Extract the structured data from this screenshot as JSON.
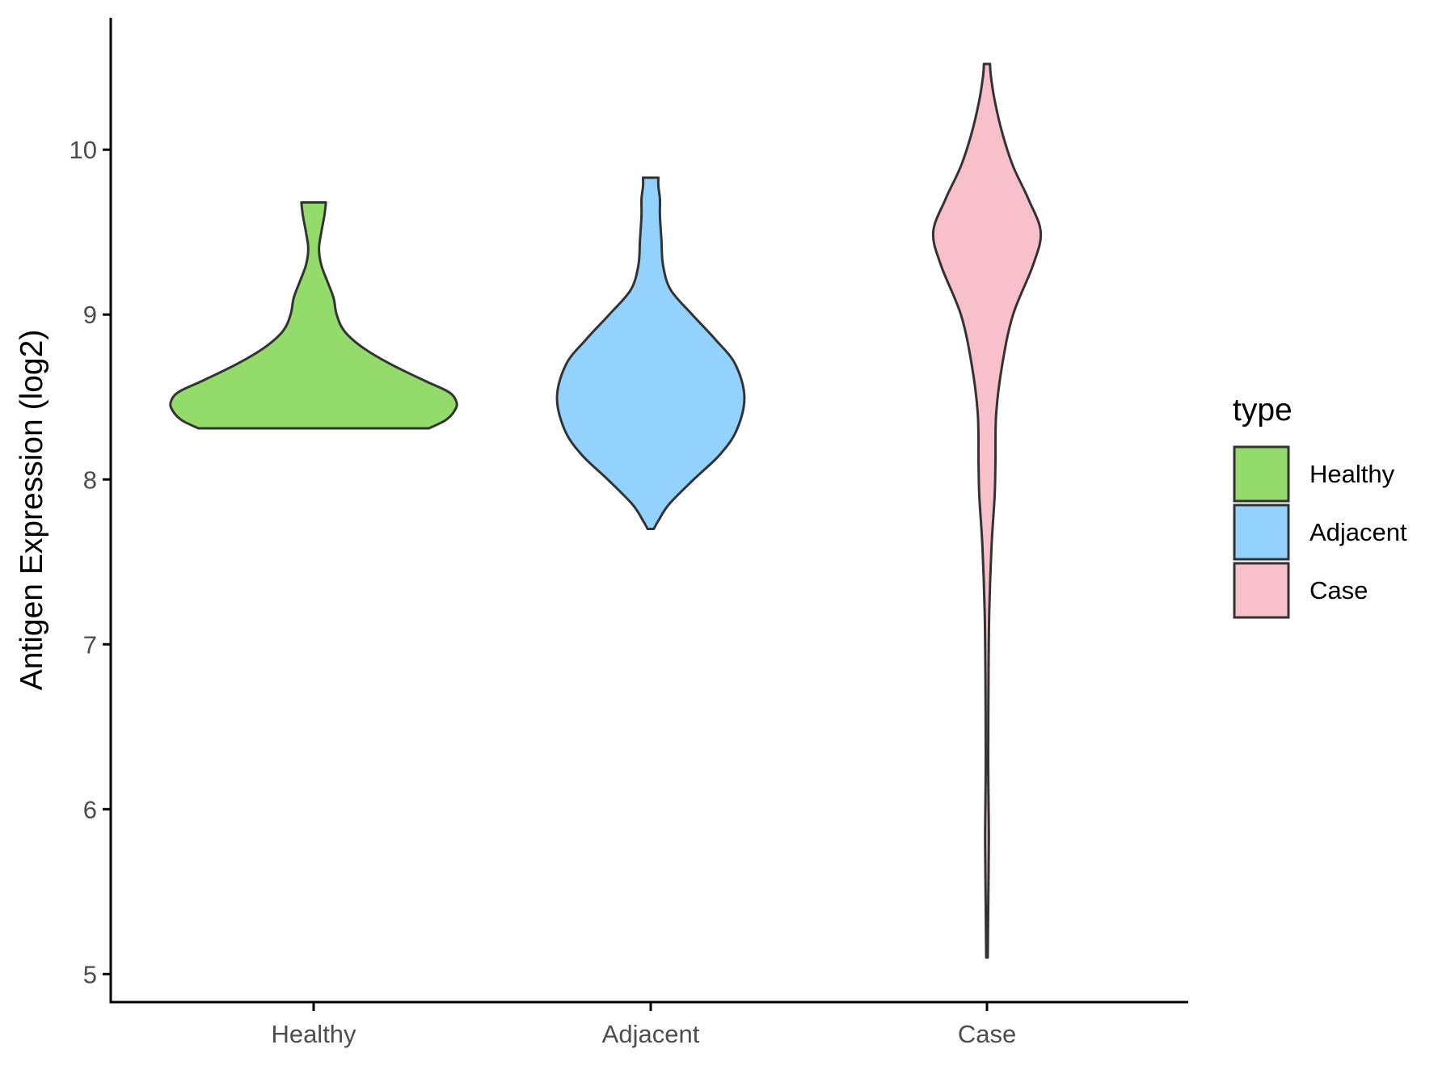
{
  "chart_data": {
    "type": "violin",
    "title": "",
    "xlabel": "",
    "ylabel": "Antigen Expression (log2)",
    "ylim": [
      4.83,
      10.8
    ],
    "yticks": [
      5,
      6,
      7,
      8,
      9,
      10
    ],
    "ytick_labels": [
      "5",
      "6",
      "7",
      "8",
      "9",
      "10"
    ],
    "categories": [
      "Healthy",
      "Adjacent",
      "Case"
    ],
    "grid": false,
    "legend": {
      "title": "type",
      "position": "right",
      "entries": [
        "Healthy",
        "Adjacent",
        "Case"
      ]
    },
    "colors": {
      "Healthy": "#93dc6b",
      "Adjacent": "#93d2fc",
      "Case": "#f7c0cb",
      "outline": "#333333"
    },
    "series": [
      {
        "name": "Healthy",
        "min": 8.31,
        "max": 9.68,
        "density": [
          [
            8.31,
            0.75
          ],
          [
            8.36,
            0.86
          ],
          [
            8.42,
            0.92
          ],
          [
            8.47,
            0.93
          ],
          [
            8.53,
            0.88
          ],
          [
            8.6,
            0.72
          ],
          [
            8.7,
            0.5
          ],
          [
            8.8,
            0.32
          ],
          [
            8.9,
            0.2
          ],
          [
            9.0,
            0.15
          ],
          [
            9.1,
            0.13
          ],
          [
            9.2,
            0.09
          ],
          [
            9.3,
            0.05
          ],
          [
            9.4,
            0.035
          ],
          [
            9.5,
            0.05
          ],
          [
            9.6,
            0.07
          ],
          [
            9.68,
            0.08
          ]
        ]
      },
      {
        "name": "Adjacent",
        "min": 7.7,
        "max": 9.83,
        "density": [
          [
            7.7,
            0.02
          ],
          [
            7.75,
            0.05
          ],
          [
            7.85,
            0.12
          ],
          [
            8.0,
            0.28
          ],
          [
            8.15,
            0.45
          ],
          [
            8.3,
            0.56
          ],
          [
            8.5,
            0.61
          ],
          [
            8.7,
            0.55
          ],
          [
            8.85,
            0.42
          ],
          [
            9.0,
            0.27
          ],
          [
            9.15,
            0.13
          ],
          [
            9.3,
            0.08
          ],
          [
            9.45,
            0.07
          ],
          [
            9.6,
            0.06
          ],
          [
            9.7,
            0.06
          ],
          [
            9.78,
            0.05
          ],
          [
            9.83,
            0.05
          ]
        ]
      },
      {
        "name": "Case",
        "min": 5.1,
        "max": 10.52,
        "density": [
          [
            5.1,
            0.005
          ],
          [
            5.4,
            0.008
          ],
          [
            5.8,
            0.012
          ],
          [
            6.05,
            0.01
          ],
          [
            6.3,
            0.008
          ],
          [
            6.8,
            0.01
          ],
          [
            7.2,
            0.015
          ],
          [
            7.6,
            0.03
          ],
          [
            7.9,
            0.05
          ],
          [
            8.1,
            0.055
          ],
          [
            8.4,
            0.06
          ],
          [
            8.7,
            0.1
          ],
          [
            9.0,
            0.17
          ],
          [
            9.3,
            0.3
          ],
          [
            9.5,
            0.35
          ],
          [
            9.7,
            0.27
          ],
          [
            9.9,
            0.17
          ],
          [
            10.1,
            0.1
          ],
          [
            10.3,
            0.05
          ],
          [
            10.45,
            0.025
          ],
          [
            10.52,
            0.02
          ]
        ]
      }
    ]
  }
}
